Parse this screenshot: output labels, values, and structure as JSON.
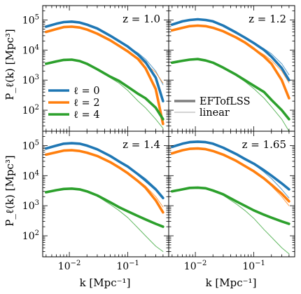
{
  "figure": {
    "ylabel": "P_ℓ(k) [Mpc³]",
    "xlabel": "k [Mpc⁻¹]",
    "xlim": [
      0.0035,
      0.5
    ],
    "ylim": [
      20,
      300000
    ],
    "scale": "log-log",
    "xticks": [
      {
        "value": 0.01,
        "base": "10",
        "exp": "−2"
      },
      {
        "value": 0.1,
        "base": "10",
        "exp": "−1"
      }
    ],
    "yticks": [
      {
        "value": 100,
        "base": "10",
        "exp": "2"
      },
      {
        "value": 1000,
        "base": "10",
        "exp": "3"
      },
      {
        "value": 10000,
        "base": "10",
        "exp": "4"
      },
      {
        "value": 100000,
        "base": "10",
        "exp": "5"
      }
    ],
    "colors": {
      "l0": "#1f77b4",
      "l2": "#ff7f0e",
      "l4": "#2ca02c",
      "eft_legend": "#7f7f7f",
      "linear_legend": "#aaaaaa"
    }
  },
  "legend_multipoles": {
    "placement": "lower-left of panel 1",
    "entries": [
      {
        "label": "ℓ = 0",
        "series": "l0"
      },
      {
        "label": "ℓ = 2",
        "series": "l2"
      },
      {
        "label": "ℓ = 4",
        "series": "l4"
      }
    ]
  },
  "legend_models": {
    "placement": "lower-left of panel 2",
    "entries": [
      {
        "label": "EFTofLSS",
        "style": "thick"
      },
      {
        "label": "linear",
        "style": "thin"
      }
    ]
  },
  "chart_data": [
    {
      "type": "line",
      "z_label": "z = 1.0",
      "k": [
        0.004,
        0.006,
        0.008,
        0.011,
        0.015,
        0.02,
        0.03,
        0.05,
        0.07,
        0.1,
        0.15,
        0.2,
        0.3,
        0.4
      ],
      "series": [
        {
          "key": "l0",
          "model": "EFTofLSS",
          "values": [
            60000,
            75000,
            85000,
            88000,
            82000,
            70000,
            52000,
            30000,
            20000,
            13000,
            7000,
            4000,
            1200,
            200
          ]
        },
        {
          "key": "l0",
          "model": "linear",
          "values": [
            60000,
            75000,
            85000,
            88000,
            82000,
            70000,
            52000,
            30000,
            20000,
            13000,
            8000,
            5000,
            2000,
            700
          ]
        },
        {
          "key": "l2",
          "model": "EFTofLSS",
          "values": [
            40000,
            50000,
            58000,
            60000,
            56000,
            48000,
            35000,
            21000,
            14000,
            9000,
            5000,
            2500,
            500,
            35
          ]
        },
        {
          "key": "l2",
          "model": "linear",
          "values": [
            40000,
            50000,
            58000,
            60000,
            56000,
            48000,
            35000,
            21000,
            14000,
            9000,
            5500,
            3500,
            1800,
            800
          ]
        },
        {
          "key": "l4",
          "model": "EFTofLSS",
          "values": [
            3500,
            4200,
            4700,
            4800,
            4300,
            3500,
            2300,
            1300,
            950,
            600,
            350,
            250,
            120,
            50
          ]
        },
        {
          "key": "l4",
          "model": "linear",
          "values": [
            3500,
            4200,
            4700,
            4800,
            4300,
            3500,
            2300,
            1200,
            800,
            450,
            200,
            120,
            50,
            25
          ]
        }
      ]
    },
    {
      "type": "line",
      "z_label": "z = 1.2",
      "k": [
        0.004,
        0.006,
        0.008,
        0.011,
        0.015,
        0.02,
        0.03,
        0.05,
        0.07,
        0.1,
        0.15,
        0.2,
        0.3,
        0.4
      ],
      "series": [
        {
          "key": "l0",
          "model": "EFTofLSS",
          "values": [
            70000,
            90000,
            100000,
            105000,
            100000,
            90000,
            65000,
            38000,
            26000,
            17000,
            10000,
            6000,
            2500,
            1000
          ]
        },
        {
          "key": "l0",
          "model": "linear",
          "values": [
            70000,
            90000,
            100000,
            105000,
            100000,
            90000,
            65000,
            38000,
            26000,
            17000,
            11000,
            7500,
            3500,
            1500
          ]
        },
        {
          "key": "l2",
          "model": "EFTofLSS",
          "values": [
            45000,
            55000,
            62000,
            65000,
            62000,
            55000,
            42000,
            26000,
            18000,
            11000,
            6000,
            3500,
            1000,
            250
          ]
        },
        {
          "key": "l2",
          "model": "linear",
          "values": [
            45000,
            55000,
            62000,
            65000,
            62000,
            55000,
            42000,
            26000,
            18000,
            11000,
            7000,
            4500,
            2000,
            800
          ]
        },
        {
          "key": "l4",
          "model": "EFTofLSS",
          "values": [
            3800,
            4400,
            4800,
            5000,
            4500,
            3800,
            2600,
            1500,
            1000,
            650,
            400,
            220,
            100,
            50
          ]
        },
        {
          "key": "l4",
          "model": "linear",
          "values": [
            3800,
            4400,
            4800,
            5000,
            4500,
            3800,
            2600,
            1400,
            900,
            520,
            250,
            130,
            50,
            20
          ]
        }
      ]
    },
    {
      "type": "line",
      "z_label": "z = 1.4",
      "k": [
        0.004,
        0.006,
        0.008,
        0.011,
        0.015,
        0.02,
        0.03,
        0.05,
        0.07,
        0.1,
        0.15,
        0.2,
        0.3,
        0.4
      ],
      "series": [
        {
          "key": "l0",
          "model": "EFTofLSS",
          "values": [
            80000,
            100000,
            115000,
            120000,
            115000,
            100000,
            75000,
            45000,
            30000,
            20000,
            11000,
            7000,
            3500,
            1800
          ]
        },
        {
          "key": "l0",
          "model": "linear",
          "values": [
            80000,
            100000,
            115000,
            120000,
            115000,
            100000,
            75000,
            45000,
            30000,
            20000,
            12000,
            8000,
            3800,
            2000
          ]
        },
        {
          "key": "l2",
          "model": "EFTofLSS",
          "values": [
            50000,
            60000,
            68000,
            70000,
            66000,
            58000,
            45000,
            28000,
            19000,
            12000,
            6500,
            4000,
            1500,
            600
          ]
        },
        {
          "key": "l2",
          "model": "linear",
          "values": [
            50000,
            60000,
            68000,
            70000,
            66000,
            58000,
            45000,
            28000,
            19000,
            12000,
            7000,
            4500,
            2000,
            900
          ]
        },
        {
          "key": "l4",
          "model": "EFTofLSS",
          "values": [
            2800,
            3300,
            3600,
            3700,
            3500,
            3000,
            2200,
            1300,
            900,
            650,
            450,
            350,
            250,
            200
          ]
        },
        {
          "key": "l4",
          "model": "linear",
          "values": [
            2800,
            3300,
            3600,
            3700,
            3500,
            3000,
            2100,
            1100,
            700,
            400,
            180,
            100,
            45,
            30
          ]
        }
      ]
    },
    {
      "type": "line",
      "z_label": "z = 1.65",
      "k": [
        0.004,
        0.006,
        0.008,
        0.011,
        0.015,
        0.02,
        0.03,
        0.05,
        0.07,
        0.1,
        0.15,
        0.2,
        0.3,
        0.4
      ],
      "series": [
        {
          "key": "l0",
          "model": "EFTofLSS",
          "values": [
            90000,
            115000,
            130000,
            135000,
            130000,
            115000,
            85000,
            52000,
            36000,
            25000,
            15000,
            10000,
            5500,
            3500
          ]
        },
        {
          "key": "l0",
          "model": "linear",
          "values": [
            90000,
            115000,
            130000,
            135000,
            130000,
            115000,
            85000,
            52000,
            36000,
            24000,
            13000,
            8000,
            3500,
            1800
          ]
        },
        {
          "key": "l2",
          "model": "EFTofLSS",
          "values": [
            55000,
            70000,
            78000,
            80000,
            76000,
            66000,
            50000,
            31000,
            21000,
            14000,
            8000,
            5000,
            2500,
            1400
          ]
        },
        {
          "key": "l2",
          "model": "linear",
          "values": [
            55000,
            70000,
            78000,
            80000,
            76000,
            66000,
            50000,
            31000,
            21000,
            13500,
            7500,
            4500,
            2000,
            1000
          ]
        },
        {
          "key": "l4",
          "model": "EFTofLSS",
          "values": [
            3000,
            3500,
            3900,
            4000,
            3800,
            3200,
            2400,
            1400,
            1000,
            700,
            500,
            400,
            300,
            250
          ]
        },
        {
          "key": "l4",
          "model": "linear",
          "values": [
            3000,
            3500,
            3900,
            4000,
            3800,
            3200,
            2200,
            1150,
            700,
            380,
            160,
            90,
            40,
            25
          ]
        }
      ]
    }
  ]
}
